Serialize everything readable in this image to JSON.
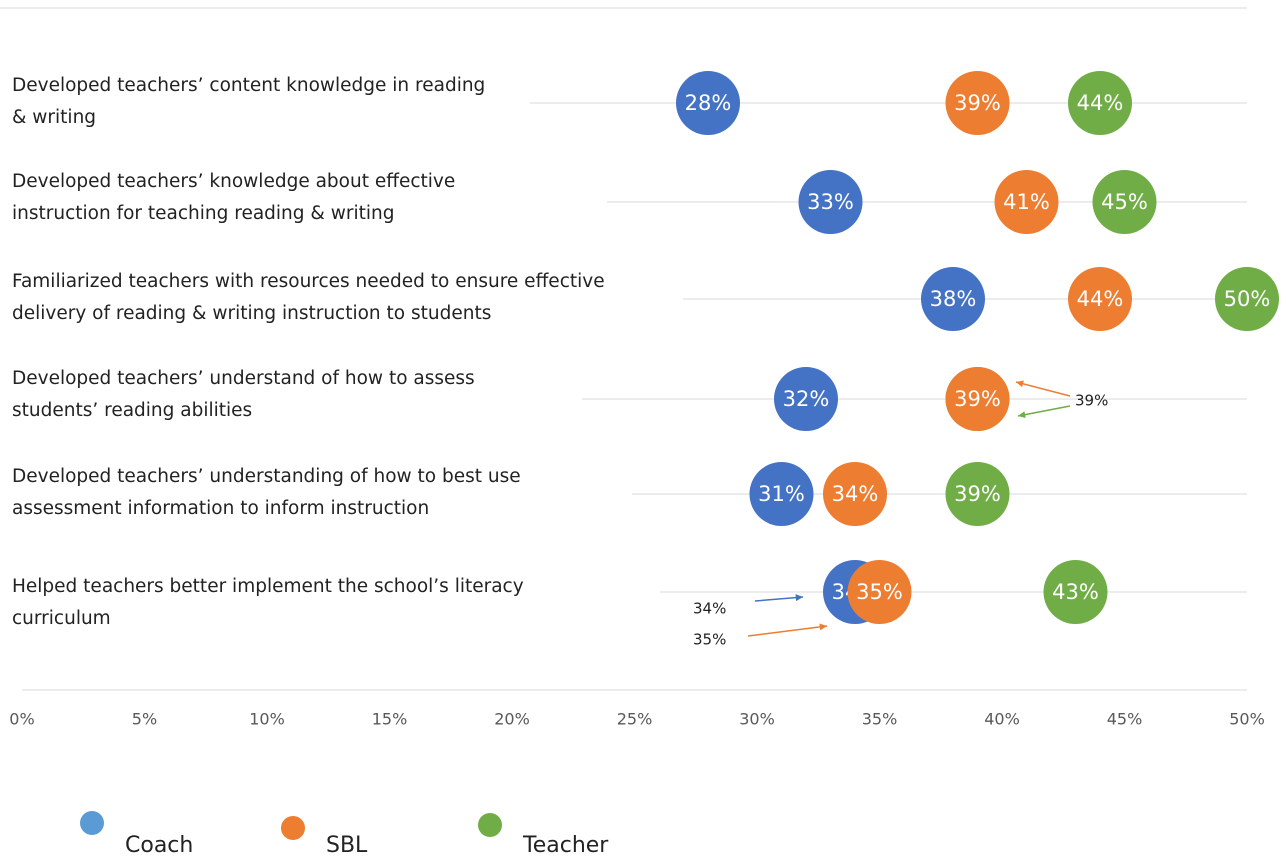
{
  "chart_data": {
    "type": "dot",
    "categories": [
      "Developed teachers’ content knowledge in reading & writing",
      "Developed teachers’ knowledge about effective instruction for teaching reading & writing",
      "Familiarized teachers with resources needed to ensure effective delivery of reading & writing instruction to students",
      "Developed teachers’ understand of how to assess students’ reading abilities",
      "Developed teachers’ understanding of how to best use assessment information to inform instruction",
      "Helped teachers better implement the school’s literacy curriculum"
    ],
    "series": [
      {
        "name": "Coach",
        "color": "#4472c4",
        "legend_color": "#5b9bd5",
        "values": [
          28,
          33,
          38,
          32,
          31,
          34
        ],
        "value_labels": [
          "28%",
          "33%",
          "38%",
          "32%",
          "31%",
          "34%"
        ]
      },
      {
        "name": "SBL",
        "color": "#ed7d31",
        "legend_color": "#ed7d31",
        "values": [
          39,
          41,
          44,
          39,
          34,
          35
        ],
        "value_labels": [
          "39%",
          "41%",
          "44%",
          "39%",
          "34%",
          "35%"
        ]
      },
      {
        "name": "Teacher",
        "color": "#70ad47",
        "legend_color": "#70ad47",
        "values": [
          44,
          45,
          50,
          39,
          39,
          43
        ],
        "value_labels": [
          "44%",
          "45%",
          "50%",
          "39%",
          "39%",
          "43%"
        ]
      }
    ],
    "annotations": [
      "39%",
      "34%",
      "35%"
    ],
    "xlim": [
      0,
      50
    ],
    "xticks": [
      {
        "value": 0,
        "label": "0%"
      },
      {
        "value": 5,
        "label": "5%"
      },
      {
        "value": 10,
        "label": "10%"
      },
      {
        "value": 15,
        "label": "15%"
      },
      {
        "value": 20,
        "label": "20%"
      },
      {
        "value": 25,
        "label": "25%"
      },
      {
        "value": 30,
        "label": "30%"
      },
      {
        "value": 35,
        "label": "35%"
      },
      {
        "value": 40,
        "label": "40%"
      },
      {
        "value": 45,
        "label": "45%"
      },
      {
        "value": 50,
        "label": "50%"
      }
    ],
    "legend": "bottom"
  }
}
